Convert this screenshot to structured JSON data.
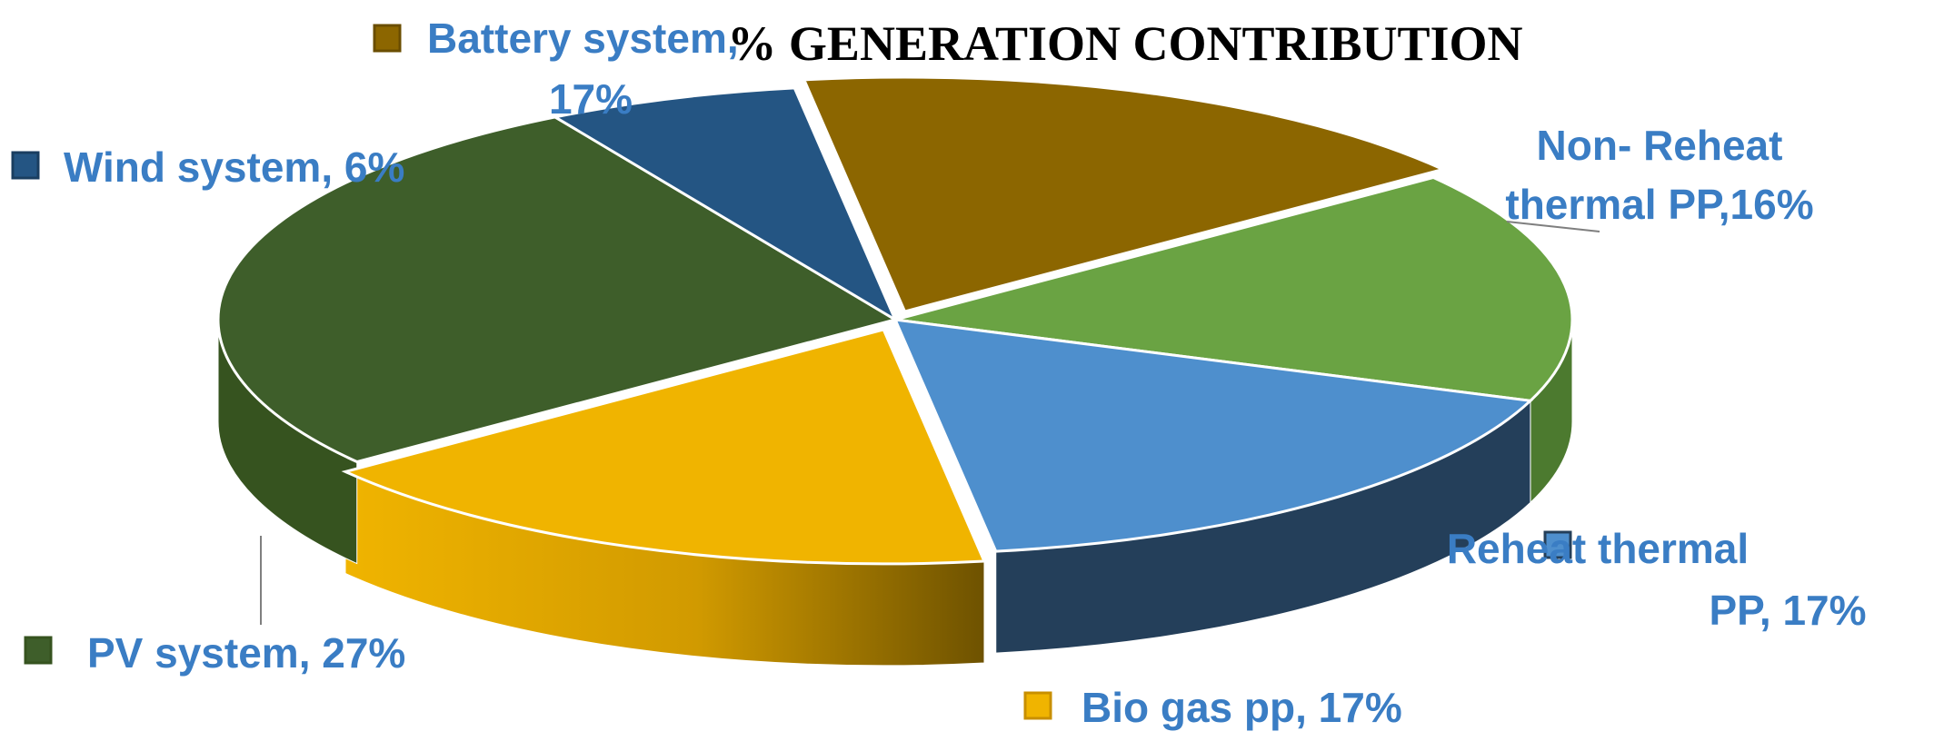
{
  "chart_data": {
    "type": "pie",
    "title": "%  GENERATION CONTRIBUTION",
    "label_color": "#3a7dc4",
    "slices": [
      {
        "name": "Battery system",
        "value": 17,
        "label_lines": [
          "Battery system,",
          "17%"
        ],
        "color": "#8c6600",
        "side_color": "#6a4d00"
      },
      {
        "name": "Non- Reheat thermal PP",
        "value": 16,
        "label_lines": [
          "Non- Reheat",
          "thermal PP,16%"
        ],
        "color": "#6aa343",
        "side_color": "#4c7a2f"
      },
      {
        "name": "Reheat thermal PP",
        "value": 17,
        "label_lines": [
          "Reheat thermal",
          "PP, 17%"
        ],
        "color": "#4e8fcd",
        "side_color": "#243f5a"
      },
      {
        "name": "Bio gas pp",
        "value": 17,
        "label_lines": [
          "Bio gas pp, 17%"
        ],
        "color": "#f0b400",
        "side_color": "#c88f00"
      },
      {
        "name": "PV system",
        "value": 27,
        "label_lines": [
          "PV system, 27%"
        ],
        "color": "#3e5e2a",
        "side_color": "#36531f"
      },
      {
        "name": "Wind system",
        "value": 6,
        "label_lines": [
          "Wind system, 6%"
        ],
        "color": "#245583",
        "side_color": "#1a3e60"
      }
    ]
  }
}
